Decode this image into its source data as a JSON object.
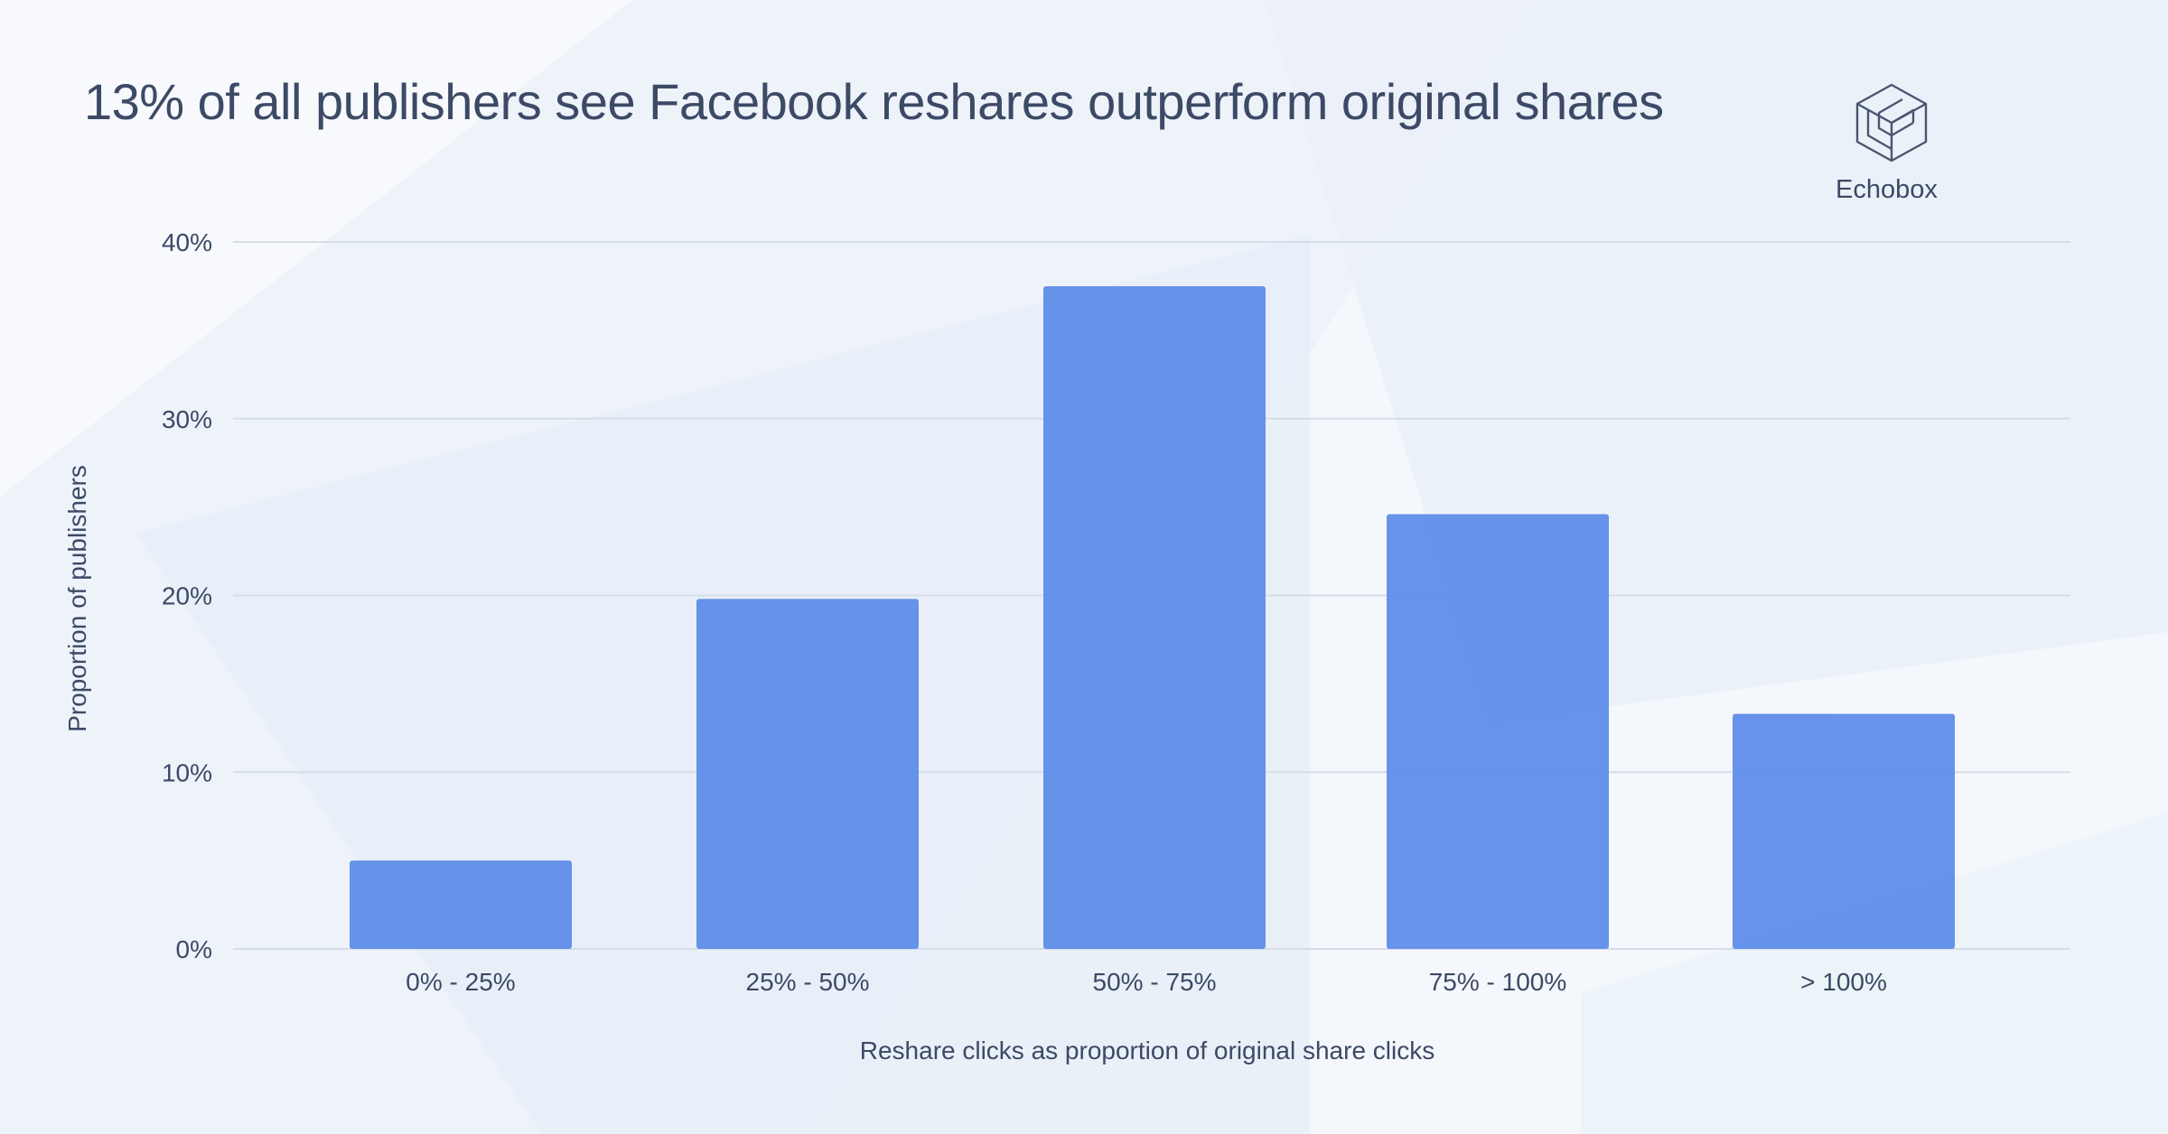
{
  "brand": {
    "name": "Echobox",
    "logo_icon": "echobox-cube-logo-icon"
  },
  "colors": {
    "bar": "#5a8ae8",
    "text": "#3c4a66",
    "grid": "#d5dde8",
    "background": "#f4f7fb"
  },
  "chart_data": {
    "type": "bar",
    "title": "13% of all publishers see Facebook reshares outperform original shares",
    "xlabel": "Reshare clicks as proportion of original share clicks",
    "ylabel": "Proportion of publishers",
    "categories": [
      "0% - 25%",
      "25% - 50%",
      "50% - 75%",
      "75% - 100%",
      "> 100%"
    ],
    "values": [
      5,
      19.8,
      37.5,
      24.6,
      13.3
    ],
    "y_ticks": [
      "0%",
      "10%",
      "20%",
      "30%",
      "40%"
    ],
    "ylim": [
      0,
      40
    ],
    "grid": true,
    "legend": "none"
  }
}
